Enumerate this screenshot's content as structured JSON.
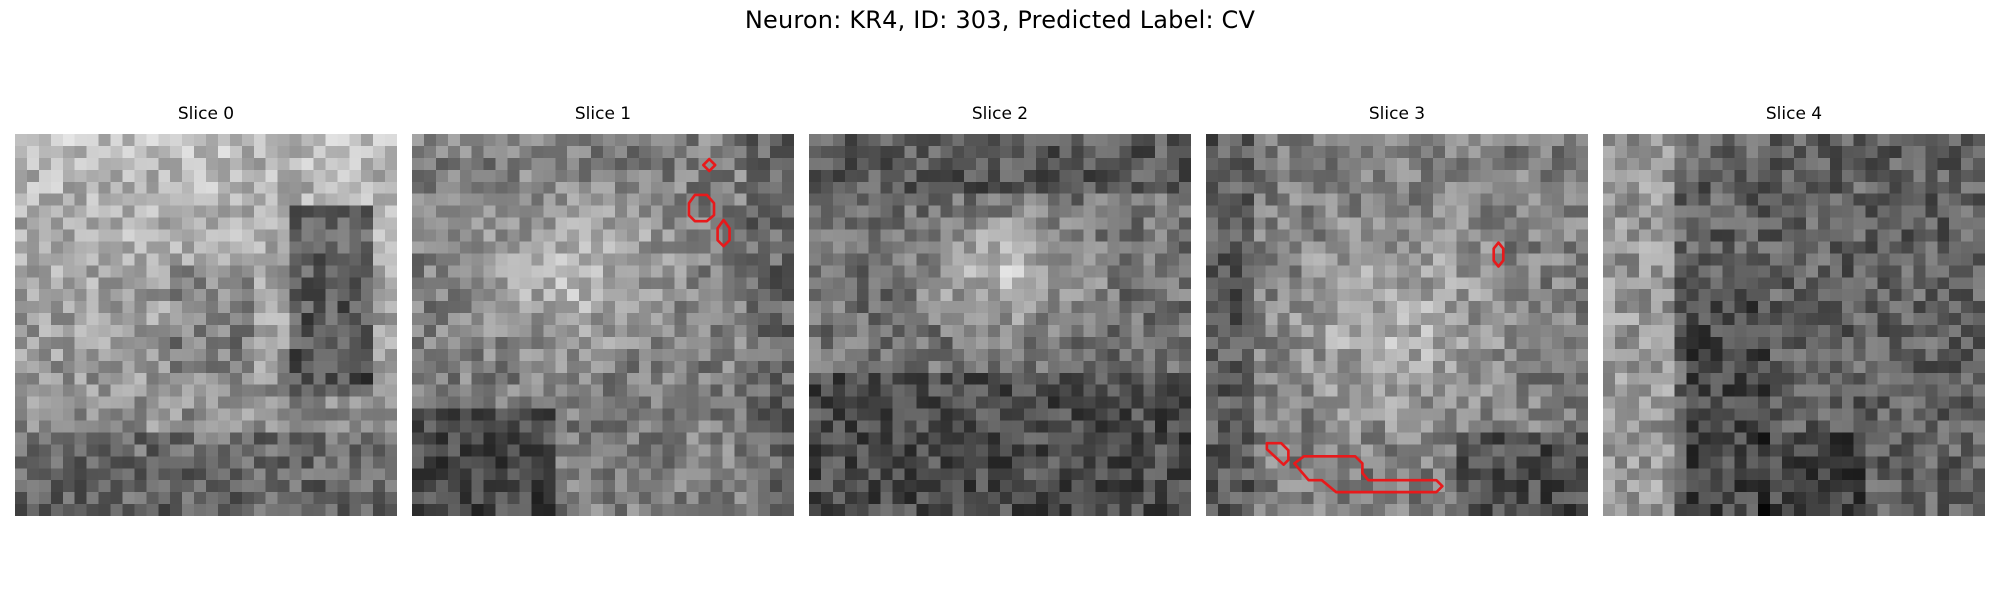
{
  "figure": {
    "title": "Neuron: KR4, ID: 303, Predicted Label: CV"
  },
  "panels": [
    {
      "title": "Slice 0",
      "seed": 11,
      "profile": "ring-light"
    },
    {
      "title": "Slice 1",
      "seed": 23,
      "profile": "bright-blob"
    },
    {
      "title": "Slice 2",
      "seed": 37,
      "profile": "center-bright"
    },
    {
      "title": "Slice 3",
      "seed": 41,
      "profile": "soft-center"
    },
    {
      "title": "Slice 4",
      "seed": 59,
      "profile": "dark-noise"
    }
  ],
  "annotation_color": "#e8191b",
  "grid_size": 32
}
